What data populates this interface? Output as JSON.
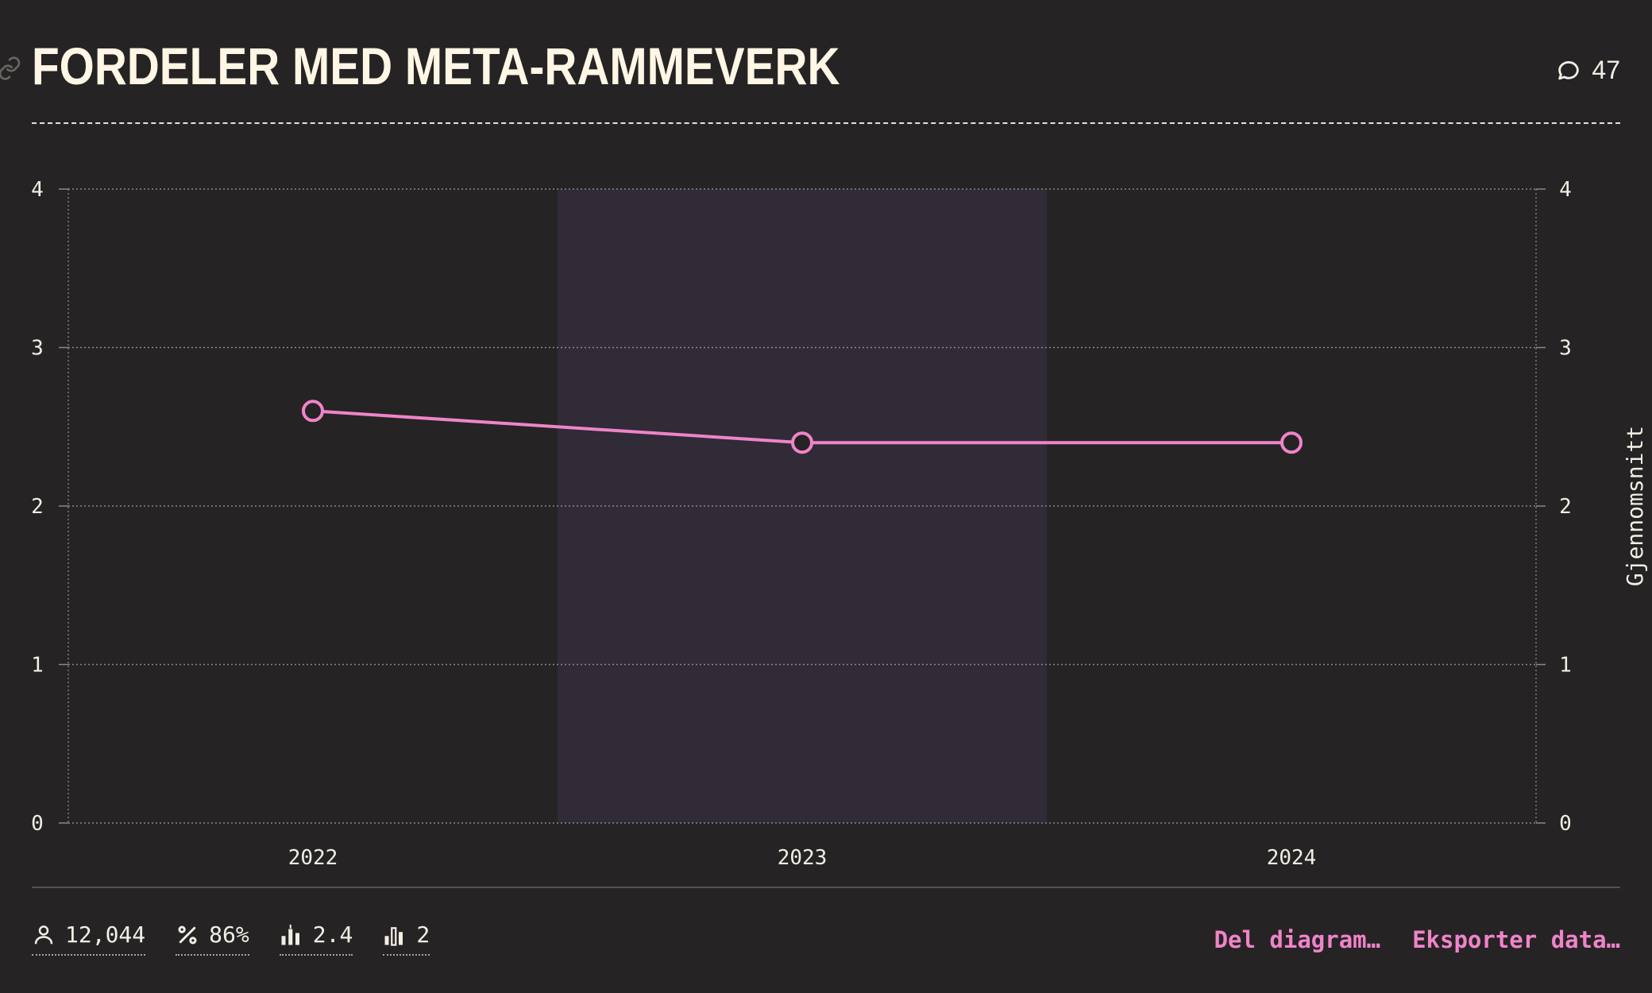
{
  "header": {
    "title": "FORDELER MED META-RAMMEVERK",
    "comments": {
      "icon": "comment-icon",
      "count": "47"
    },
    "link_icon": "link-icon"
  },
  "colors": {
    "background": "#262324",
    "highlight_band": "#302b36",
    "line": "#ef84c9",
    "text": "#f3eee5",
    "grid": "#8e8885"
  },
  "chart_data": {
    "type": "line",
    "title": "",
    "xlabel": "",
    "ylabel": "",
    "y2label": "Gjennomsnitt",
    "categories": [
      "2022",
      "2023",
      "2024"
    ],
    "series": [
      {
        "values": [
          2.6,
          2.4,
          2.4
        ]
      }
    ],
    "ylim": [
      0,
      4
    ],
    "yticks": [
      "0",
      "1",
      "2",
      "3",
      "4"
    ],
    "highlighted_category": "2023",
    "grid": true,
    "legend": "none"
  },
  "footer": {
    "stats": [
      {
        "icon": "user-icon",
        "value": "12,044"
      },
      {
        "icon": "percent-icon",
        "value": "86%"
      },
      {
        "icon": "average-bar-icon",
        "value": "2.4"
      },
      {
        "icon": "median-bar-icon",
        "value": "2"
      }
    ],
    "actions": [
      {
        "label": "Del diagram…"
      },
      {
        "label": "Eksporter data…"
      }
    ]
  }
}
